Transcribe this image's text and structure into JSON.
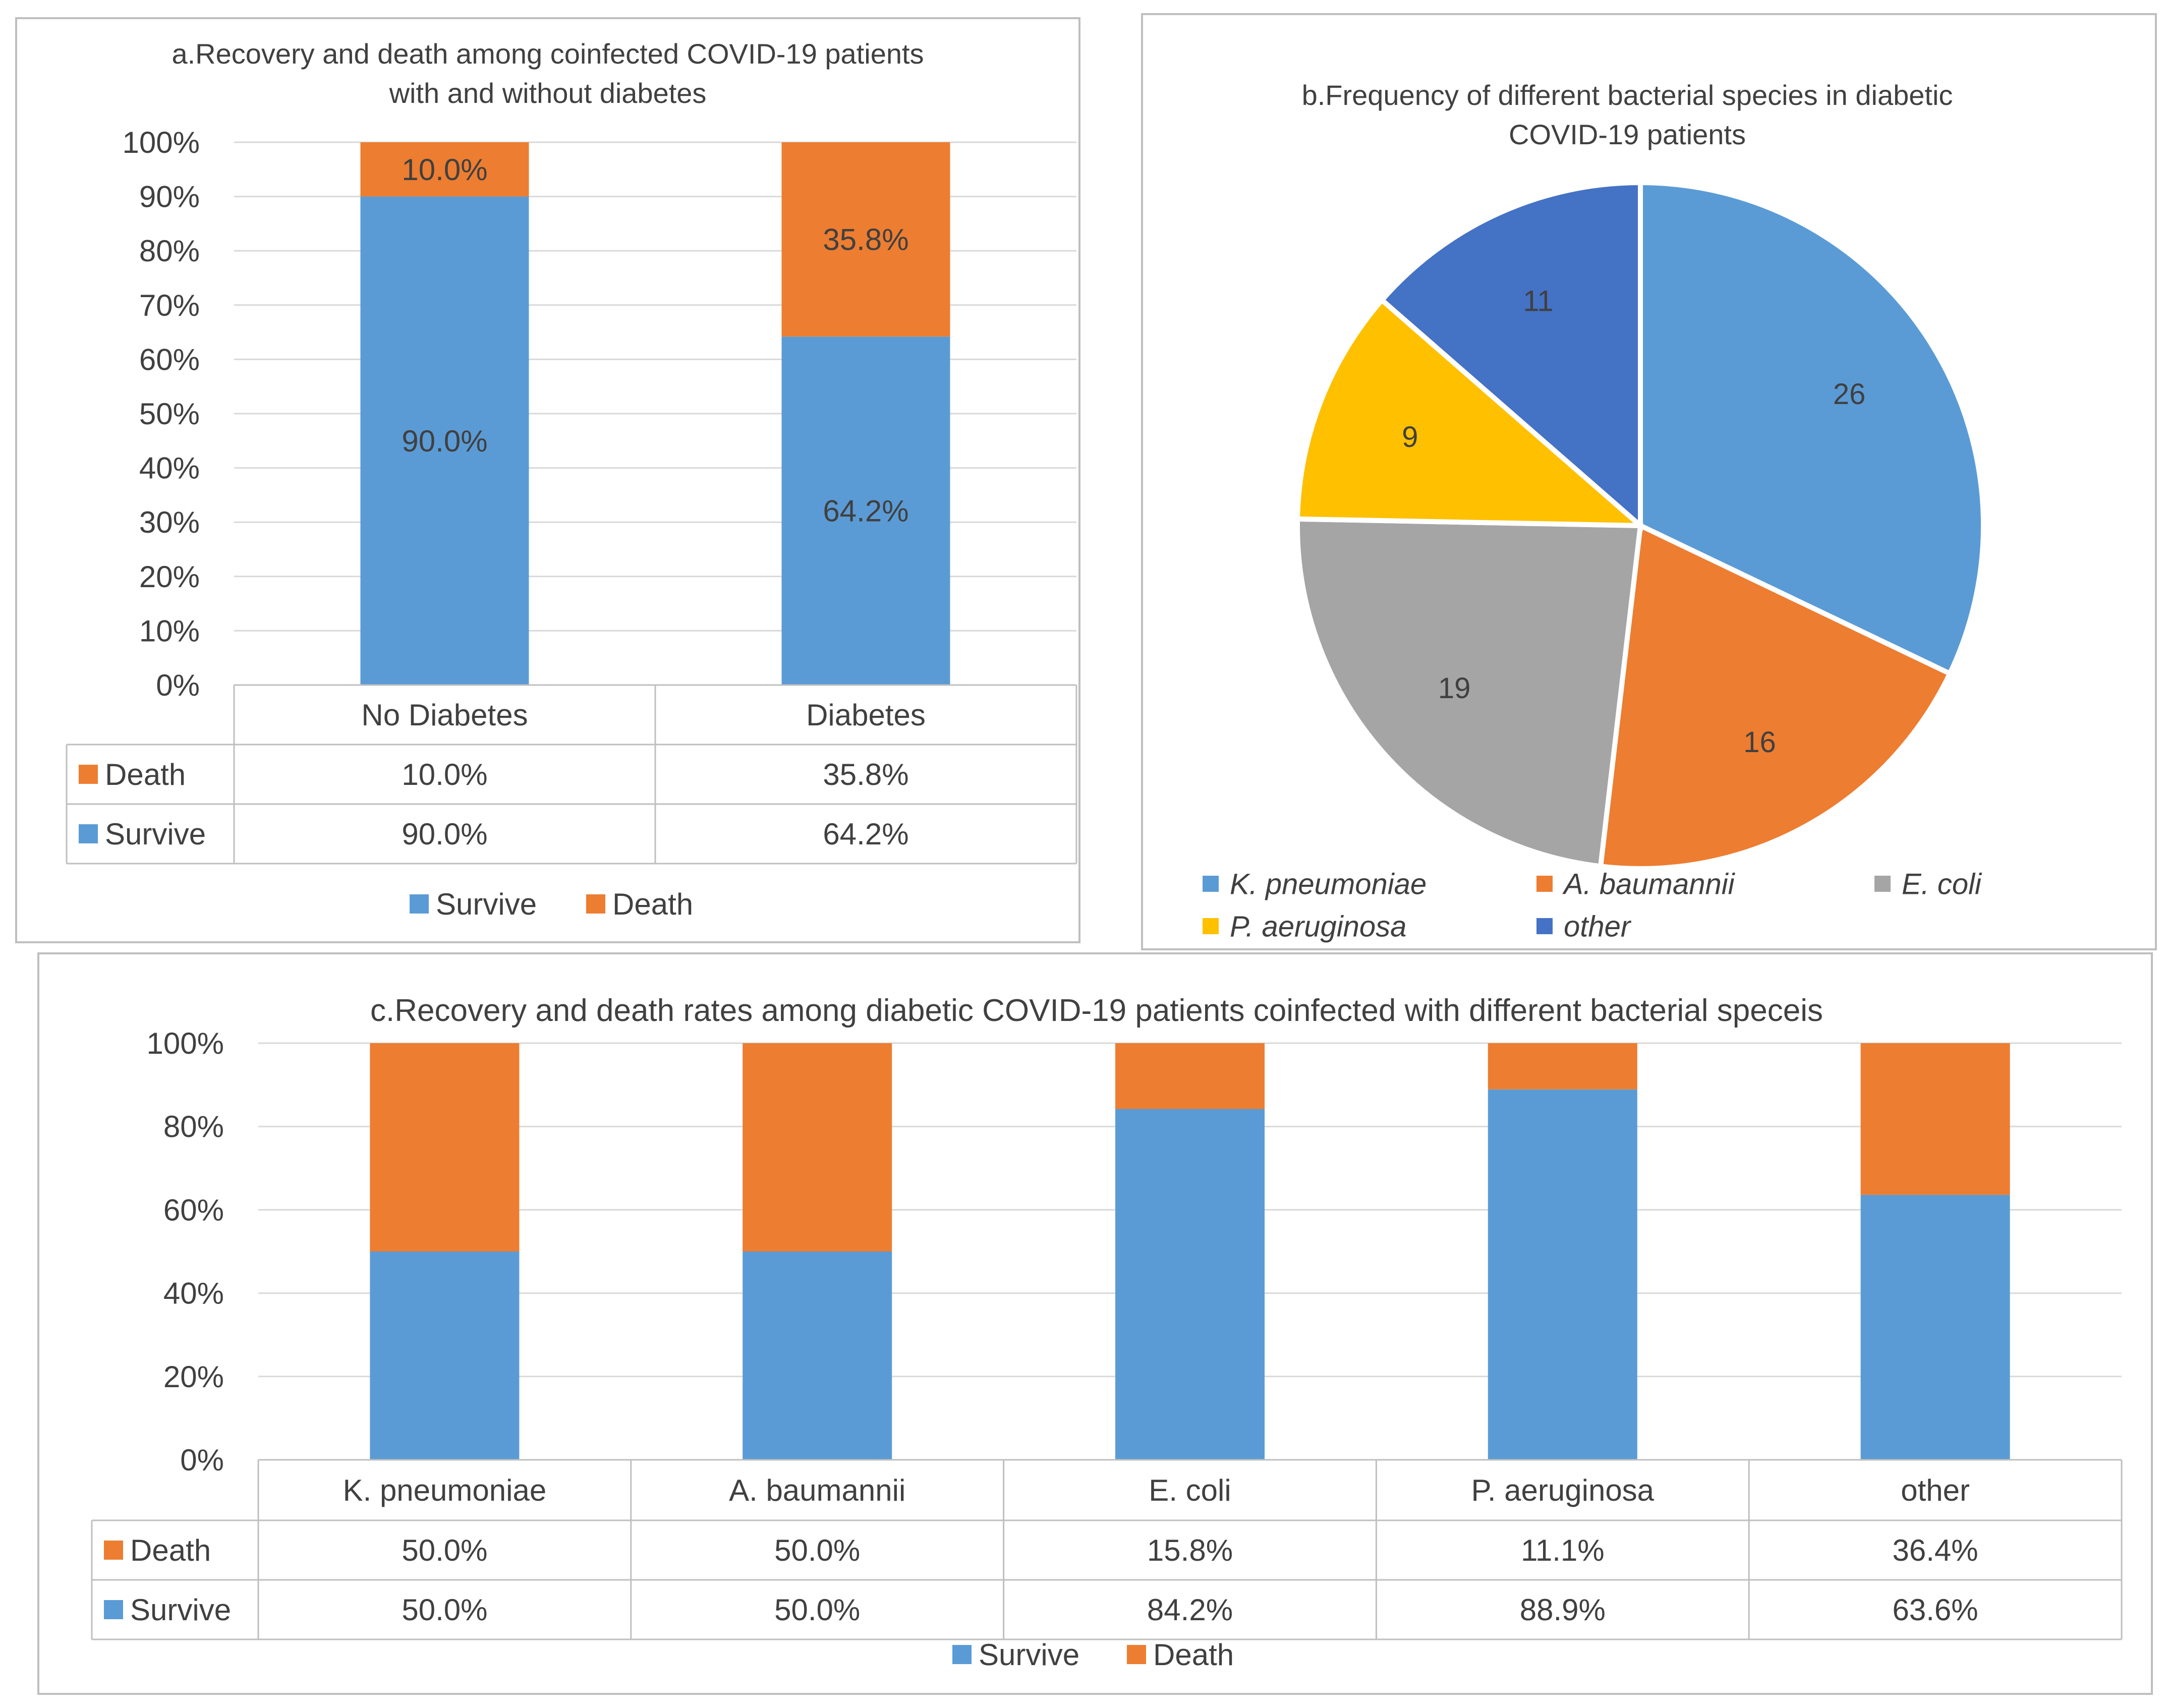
{
  "colors": {
    "survive": "#5b9bd5",
    "death": "#ed7d31",
    "gray": "#a5a5a5",
    "yellow": "#ffc000",
    "darkblue": "#4472c4",
    "grid": "#d9d9d9",
    "text": "#404040",
    "border": "#bfbfbf"
  },
  "chart_data": [
    {
      "id": "a",
      "type": "bar",
      "stacked": true,
      "title": "a.Recovery and death among coinfected COVID-19 patients with and without diabetes",
      "title_lines": [
        "a.Recovery and death among coinfected COVID-19 patients",
        "with and without diabetes"
      ],
      "categories": [
        "No Diabetes",
        "Diabetes"
      ],
      "series": [
        {
          "name": "Survive",
          "values": [
            90.0,
            64.2
          ],
          "labels": [
            "90.0%",
            "64.2%"
          ]
        },
        {
          "name": "Death",
          "values": [
            10.0,
            35.8
          ],
          "labels": [
            "10.0%",
            "35.8%"
          ]
        }
      ],
      "ylim": [
        0,
        100
      ],
      "yticks": [
        "0%",
        "10%",
        "20%",
        "30%",
        "40%",
        "50%",
        "60%",
        "70%",
        "80%",
        "90%",
        "100%"
      ],
      "table_rows": [
        {
          "name": "Death",
          "cells": [
            "10.0%",
            "35.8%"
          ]
        },
        {
          "name": "Survive",
          "cells": [
            "90.0%",
            "64.2%"
          ]
        }
      ],
      "legend": [
        "Survive",
        "Death"
      ],
      "legend_position": "bottom"
    },
    {
      "id": "b",
      "type": "pie",
      "title": "b.Frequency of different bacterial species in diabetic COVID-19 patients",
      "title_lines": [
        "b.Frequency of different bacterial species in diabetic",
        "COVID-19 patients"
      ],
      "slices": [
        {
          "name": "K. pneumoniae",
          "value": 26,
          "label": "26"
        },
        {
          "name": "A. baumannii",
          "value": 16,
          "label": "16"
        },
        {
          "name": "E. coli",
          "value": 19,
          "label": "19"
        },
        {
          "name": "P. aeruginosa",
          "value": 9,
          "label": "9"
        },
        {
          "name": "other",
          "value": 11,
          "label": "11"
        }
      ],
      "legend_position": "bottom"
    },
    {
      "id": "c",
      "type": "bar",
      "stacked": true,
      "title": "c.Recovery and death rates among diabetic COVID-19 patients coinfected with different bacterial speceis",
      "categories": [
        "K. pneumoniae",
        "A. baumannii",
        "E. coli",
        "P. aeruginosa",
        "other"
      ],
      "series": [
        {
          "name": "Survive",
          "values": [
            50.0,
            50.0,
            84.2,
            88.9,
            63.6
          ]
        },
        {
          "name": "Death",
          "values": [
            50.0,
            50.0,
            15.8,
            11.1,
            36.4
          ]
        }
      ],
      "ylim": [
        0,
        100
      ],
      "yticks": [
        "0%",
        "20%",
        "40%",
        "60%",
        "80%",
        "100%"
      ],
      "table_rows": [
        {
          "name": "Death",
          "cells": [
            "50.0%",
            "50.0%",
            "15.8%",
            "11.1%",
            "36.4%"
          ]
        },
        {
          "name": "Survive",
          "cells": [
            "50.0%",
            "50.0%",
            "84.2%",
            "88.9%",
            "63.6%"
          ]
        }
      ],
      "legend": [
        "Survive",
        "Death"
      ],
      "legend_position": "bottom"
    }
  ]
}
